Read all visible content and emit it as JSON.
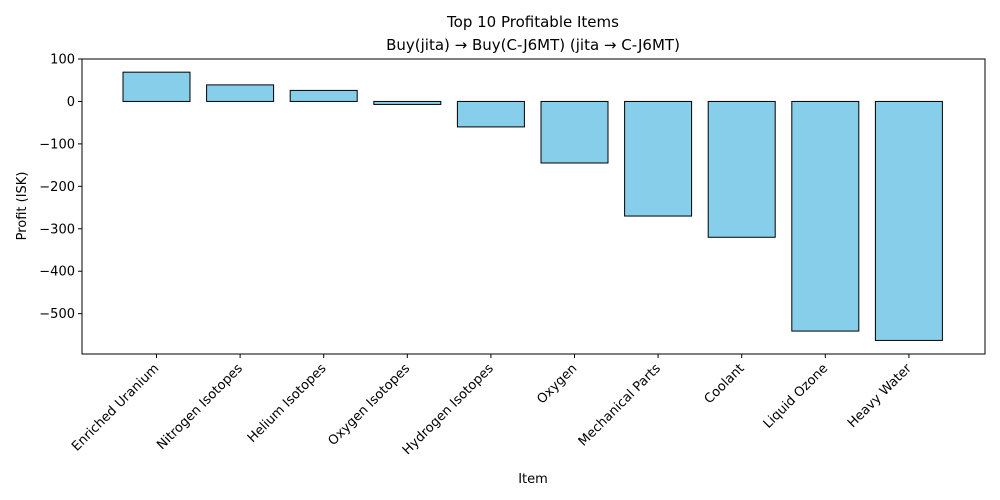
{
  "chart_data": {
    "type": "bar",
    "title": "Top 10 Profitable Items",
    "subtitle": "Buy(jita) → Buy(C-J6MT) (jita → C-J6MT)",
    "xlabel": "Item",
    "ylabel": "Profit (ISK)",
    "categories": [
      "Enriched Uranium",
      "Nitrogen Isotopes",
      "Helium Isotopes",
      "Oxygen Isotopes",
      "Hydrogen Isotopes",
      "Oxygen",
      "Mechanical Parts",
      "Coolant",
      "Liquid Ozone",
      "Heavy Water"
    ],
    "values": [
      69,
      39,
      26,
      -7,
      -60,
      -145,
      -270,
      -320,
      -541,
      -563
    ],
    "ylim": [
      -595,
      100
    ],
    "yticks": [
      100,
      0,
      -100,
      -200,
      -300,
      -400,
      -500
    ],
    "ytick_labels": [
      "100",
      "0",
      "−100",
      "−200",
      "−300",
      "−400",
      "−500"
    ],
    "grid": false,
    "colors": {
      "bar_fill": "#87CEEB",
      "bar_edge": "#000000"
    }
  }
}
